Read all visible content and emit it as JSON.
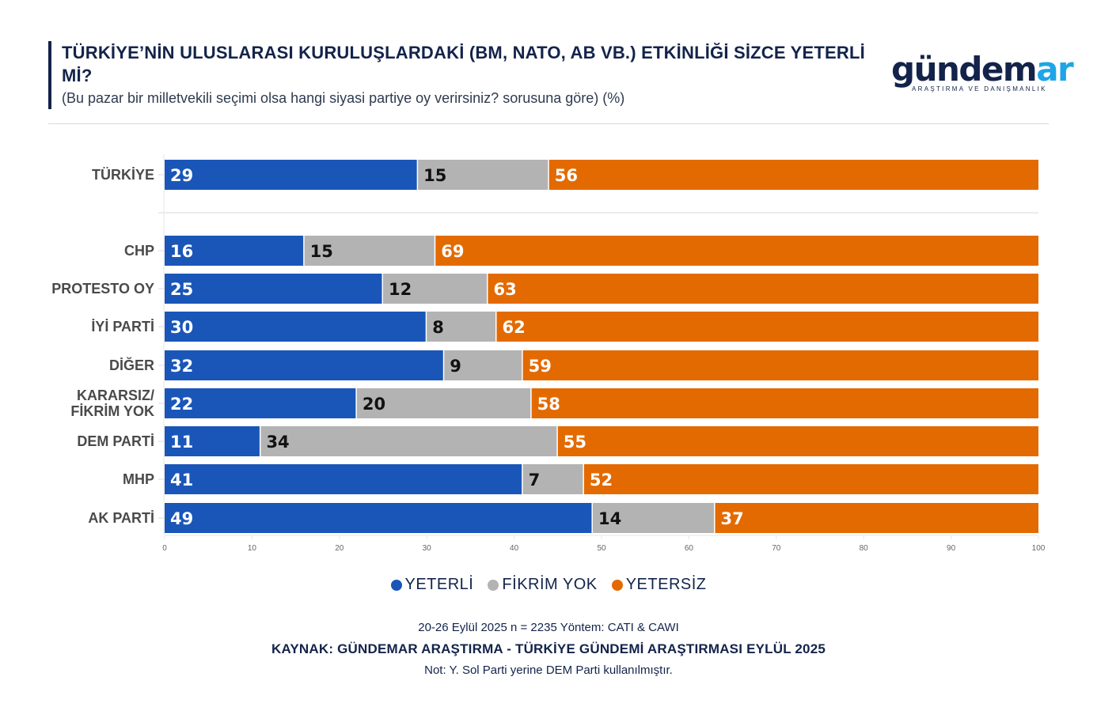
{
  "header": {
    "title": "TÜRKİYE’NİN ULUSLARASI KURULUŞLARDAKİ (BM, NATO, AB VB.) ETKİNLİĞİ SİZCE YETERLİ Mİ?",
    "subtitle": "(Bu pazar bir milletvekili seçimi olsa hangi siyasi partiye oy verirsiniz? sorusuna göre) (%)"
  },
  "logo": {
    "word_main": "gündem",
    "word_accent": "ar",
    "tagline": "ARAŞTIRMA VE DANIŞMANLIK"
  },
  "colors": {
    "yeterli": "#1a56b8",
    "fikrim_yok": "#b3b3b3",
    "yetersiz": "#e36a00",
    "brand_dark": "#13234a",
    "brand_accent": "#1ea5e8"
  },
  "chart_data": {
    "type": "bar",
    "orientation": "horizontal",
    "stacked": true,
    "title": "TÜRKİYE’NİN ULUSLARASI KURULUŞLARDAKİ (BM, NATO, AB VB.) ETKİNLİĞİ SİZCE YETERLİ Mİ?",
    "subtitle": "(Bu pazar bir milletvekili seçimi olsa hangi siyasi partiye oy verirsiniz? sorusuna göre) (%)",
    "categories": [
      "TÜRKİYE",
      "CHP",
      "PROTESTO OY",
      "İYİ PARTİ",
      "DİĞER",
      "KARARSIZ/ FİKRİM YOK",
      "DEM PARTİ",
      "MHP",
      "AK PARTİ"
    ],
    "series": [
      {
        "name": "YETERLİ",
        "color": "#1a56b8",
        "values": [
          29,
          16,
          25,
          30,
          32,
          22,
          11,
          41,
          49
        ]
      },
      {
        "name": "FİKRİM YOK",
        "color": "#b3b3b3",
        "values": [
          15,
          15,
          12,
          8,
          9,
          20,
          34,
          7,
          14
        ]
      },
      {
        "name": "YETERSİZ",
        "color": "#e36a00",
        "values": [
          56,
          69,
          63,
          62,
          59,
          58,
          55,
          52,
          37
        ]
      }
    ],
    "xlim": [
      0,
      100
    ],
    "xticks": [
      0,
      10,
      20,
      30,
      40,
      50,
      60,
      70,
      80,
      90,
      100
    ],
    "xlabel": "",
    "ylabel": "",
    "grid": false,
    "legend": "bottom-center",
    "group_separator_after": "TÜRKİYE"
  },
  "legend": [
    {
      "label": "YETERLİ",
      "color": "#1a56b8"
    },
    {
      "label": "FİKRİM YOK",
      "color": "#b3b3b3"
    },
    {
      "label": "YETERSİZ",
      "color": "#e36a00"
    }
  ],
  "footer": {
    "method": "20-26 Eylül 2025 n = 2235 Yöntem: CATI & CAWI",
    "source": "KAYNAK: GÜNDEMAR ARAŞTIRMA - TÜRKİYE GÜNDEMİ ARAŞTIRMASI EYLÜL 2025",
    "note": "Not: Y. Sol Parti yerine DEM Parti kullanılmıştır."
  }
}
